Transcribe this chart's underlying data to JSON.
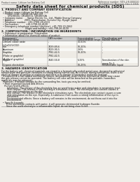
{
  "bg_color": "#f0ede8",
  "title": "Safety data sheet for chemical products (SDS)",
  "header_left": "Product name: Lithium Ion Battery Cell",
  "header_right_line1": "Reference number: SDS-LIB-000010",
  "header_right_line2": "Established / Revision: Dec.1.2016",
  "section1_title": "1. PRODUCT AND COMPANY IDENTIFICATION",
  "section1_lines": [
    "  • Product name: Lithium Ion Battery Cell",
    "  • Product code: Cylindrical-type cell",
    "         UR18650U, UR18650L, UR18650A",
    "  • Company name:      Sanyo Electric Co., Ltd., Mobile Energy Company",
    "  • Address:              2001, Kamirokutan, Sumoto City, Hyogo, Japan",
    "  • Telephone number:  +81-(799)-20-4111",
    "  • Fax number:          +81-1799-26-4120",
    "  • Emergency telephone number (daytime): +81-799-20-2662",
    "                                  (Night and holiday): +81-799-26-4120"
  ],
  "section2_title": "2. COMPOSITION / INFORMATION ON INGREDIENTS",
  "section2_intro": "  • Substance or preparation: Preparation",
  "section2_sub": "  • Information about the chemical nature of product:",
  "table_col_names": [
    "Component / General name",
    "CAS number",
    "Concentration / Concentration range",
    "Classification and hazard labeling"
  ],
  "table_col_headers_line1": [
    "Component /",
    "CAS number",
    "Concentration /",
    "Classification and"
  ],
  "table_col_headers_line2": [
    "General name",
    "",
    "Concentration range",
    "hazard labeling"
  ],
  "table_rows": [
    [
      "Lithium cobalt oxide\n(LiCoO2/LiCO2)",
      "-",
      "30-60%",
      "-"
    ],
    [
      "Iron",
      "7439-89-6",
      "10-20%",
      "-"
    ],
    [
      "Aluminum",
      "7429-90-5",
      "2-6%",
      "-"
    ],
    [
      "Graphite\n(Flake or graphite)\n(Artificial graphite)",
      "7782-42-5\n7782-42-5",
      "10-20%",
      "-"
    ],
    [
      "Copper",
      "7440-50-8",
      "5-15%",
      "Sensitization of the skin\ngroup No.2"
    ],
    [
      "Organic electrolyte",
      "-",
      "10-25%",
      "Inflammable liquid"
    ]
  ],
  "section3_title": "3. HAZARDS IDENTIFICATION",
  "section3_para1": "For the battery cell, chemical materials are stored in a hermetically sealed metal case, designed to withstand",
  "section3_para2": "temperature and pressure variations occurring during normal use. As a result, during normal use, there is no",
  "section3_para3": "physical danger of ignition or explosion and there is no danger of hazardous materials leakage.",
  "section3_para4": "  If exposed to a fire, added mechanical shocks, decomposed, under electro mechanical stress may cause",
  "section3_para5": "the gas release cannot be operated. The battery cell case will be breached at fire-portable, hazardous",
  "section3_para6": "materials may be released.",
  "section3_para7": "  Moreover, if heated strongly by the surrounding fire, toxic gas may be emitted.",
  "section3_bullet1": "  • Most important hazard and effects:",
  "section3_human": "    Human health effects:",
  "section3_human_lines": [
    "        Inhalation: The release of the electrolyte has an anesthesia action and stimulates in respiratory tract.",
    "        Skin contact: The release of the electrolyte stimulates a skin. The electrolyte skin contact causes a",
    "        sore and stimulation on the skin.",
    "        Eye contact: The release of the electrolyte stimulates eyes. The electrolyte eye contact causes a sore",
    "        and stimulation on the eye. Especially, a substance that causes a strong inflammation of the eye is",
    "        contained.",
    "        Environmental effects: Since a battery cell remains in the environment, do not throw out it into the",
    "        environment."
  ],
  "section3_bullet2": "  • Specific hazards:",
  "section3_specific_lines": [
    "       If the electrolyte contacts with water, it will generate detrimental hydrogen fluoride.",
    "       Since the used electrolyte is inflammable liquid, do not bring close to fire."
  ],
  "footer_line": "___"
}
